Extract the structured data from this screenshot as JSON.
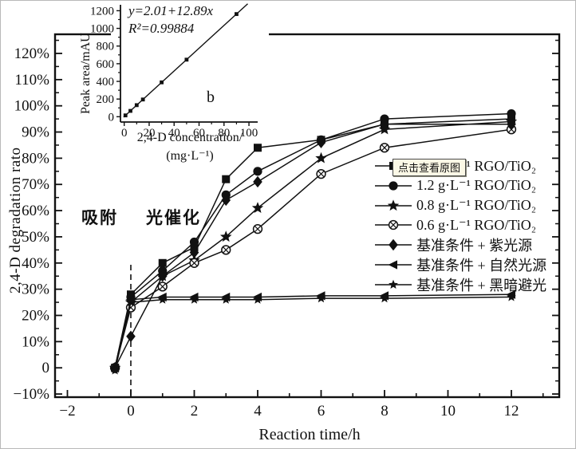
{
  "colors": {
    "line": "#111111",
    "background": "#ffffff",
    "tooltip_bg": "#fbf8e6",
    "tooltip_border": "#4a4a4a"
  },
  "tooltip": {
    "text": "点击查看原图"
  },
  "chart_data": {
    "type": "line",
    "main": {
      "title": "",
      "xlabel": "Reaction time/h",
      "ylabel": "2,4-D degradation rato",
      "xlim": [
        -2.39,
        13.51
      ],
      "ylim": [
        -11.2,
        127.3
      ],
      "x_major_ticks": [
        -2,
        0,
        2,
        4,
        6,
        8,
        10,
        12
      ],
      "x_major_labels": [
        "−2",
        "0",
        "2",
        "4",
        "6",
        "8",
        "10",
        "12"
      ],
      "x_minor_ticks": [
        -1,
        1,
        3,
        5,
        7,
        9,
        11,
        13
      ],
      "y_major_ticks": [
        -10,
        0,
        10,
        20,
        30,
        40,
        50,
        60,
        70,
        80,
        90,
        100,
        110,
        120
      ],
      "y_major_labels": [
        "−10%",
        "0",
        "10%",
        "20%",
        "30%",
        "40%",
        "50%",
        "60%",
        "70%",
        "80%",
        "90%",
        "100%",
        "110%",
        "120%"
      ],
      "y_minor_step": 5,
      "grid": false,
      "dashed_divider_x": 0,
      "annotations": {
        "adsorption": "吸附",
        "photocatalysis": "光催化"
      },
      "x": [
        -0.5,
        0,
        1,
        2,
        3,
        4,
        6,
        8,
        12
      ],
      "series": [
        {
          "name": "1.8 g·L⁻¹ RGO/TiO₂",
          "marker": "square",
          "values": [
            0,
            28,
            40,
            46,
            72,
            84,
            87,
            93,
            95
          ]
        },
        {
          "name": "1.2 g·L⁻¹ RGO/TiO₂",
          "marker": "circle",
          "values": [
            0,
            27,
            37,
            48,
            66,
            75,
            87,
            95,
            97
          ]
        },
        {
          "name": "0.8 g·L⁻¹ RGO/TiO₂",
          "marker": "star",
          "values": [
            0,
            25,
            35,
            41,
            50,
            61,
            80,
            91,
            94
          ]
        },
        {
          "name": "0.6 g·L⁻¹ RGO/TiO₂",
          "marker": "circle-cross",
          "values": [
            0,
            23,
            31,
            40,
            45,
            53,
            74,
            84,
            91
          ]
        },
        {
          "name": "基准条件 + 紫光源",
          "marker": "diamond",
          "values": [
            0,
            12,
            35,
            44,
            64,
            71,
            86,
            93,
            93
          ]
        },
        {
          "name": "基准条件 + 自然光源",
          "marker": "triangle-left",
          "values": [
            0,
            26,
            27,
            27,
            27,
            27,
            27.5,
            27.5,
            28
          ]
        },
        {
          "name": "基准条件 + 黑暗避光",
          "marker": "star-small",
          "values": [
            -1,
            25,
            26,
            26,
            26,
            26,
            26.5,
            26.5,
            27
          ]
        }
      ],
      "legend_position": "right-inside"
    },
    "inset": {
      "panel_label": "b",
      "equation_line1": "y=2.01+12.89x",
      "equation_line2": "R²=0.99884",
      "xlabel_line1": "2,4-D concentration/",
      "xlabel_line2": "(mg·L⁻¹)",
      "ylabel": "Peak area/mAU",
      "xlim": [
        -3,
        107
      ],
      "ylim": [
        -60,
        1240
      ],
      "x_ticks": [
        0,
        20,
        40,
        60,
        80,
        100
      ],
      "y_ticks": [
        0,
        200,
        400,
        600,
        800,
        1000,
        1200
      ],
      "points_x": [
        1,
        5,
        10,
        15,
        30,
        50,
        90
      ],
      "points_y": [
        15,
        66,
        131,
        195,
        389,
        646,
        1162
      ],
      "fit": {
        "intercept": 2.01,
        "slope": 12.89,
        "x_start": -0.5,
        "x_end": 99
      }
    }
  }
}
